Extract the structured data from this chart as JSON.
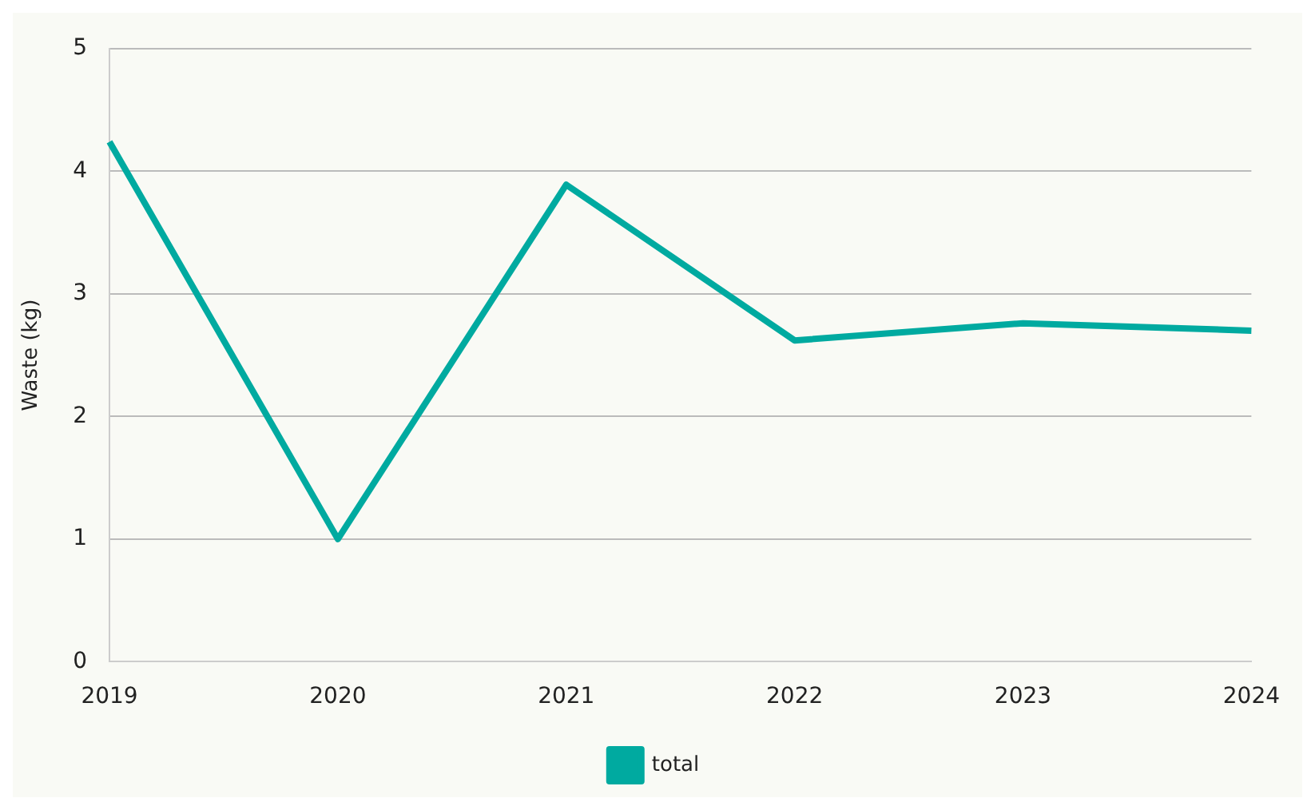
{
  "chart_data": {
    "type": "line",
    "ylabel": "Waste (kg)",
    "categories": [
      "2019",
      "2020",
      "2021",
      "2022",
      "2023",
      "2024"
    ],
    "series": [
      {
        "name": "total",
        "color": "#00aaa0",
        "values": [
          4.24,
          1.0,
          3.89,
          2.62,
          2.76,
          2.7
        ]
      }
    ],
    "ylim": [
      0,
      5
    ],
    "yticks": [
      0,
      1,
      2,
      3,
      4,
      5
    ],
    "grid": "y",
    "legend": "bottom",
    "marker": "none",
    "line_style": "solid"
  }
}
